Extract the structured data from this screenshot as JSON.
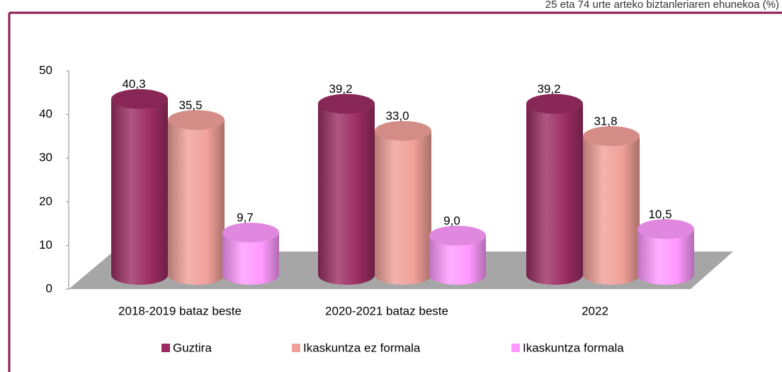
{
  "chart_data": {
    "type": "bar3d",
    "title": "25 eta 74 urte arteko biztanleriaren ehunekoa (%)",
    "categories": [
      "2018-2019 bataz beste",
      "2020-2021 bataz beste",
      "2022"
    ],
    "series": [
      {
        "name": "Guztira",
        "color": "#9b2c62",
        "values": [
          40.3,
          39.2,
          39.2
        ],
        "value_labels": [
          "40,3",
          "39,2",
          "39,2"
        ]
      },
      {
        "name": "Ikaskuntza ez formala",
        "color": "#f0a098",
        "values": [
          35.5,
          33.0,
          31.8
        ],
        "value_labels": [
          "35,5",
          "33,0",
          "31,8"
        ]
      },
      {
        "name": "Ikaskuntza formala",
        "color": "#ff99ff",
        "values": [
          9.7,
          9.0,
          10.5
        ],
        "value_labels": [
          "9,7",
          "9,0",
          "10,5"
        ]
      }
    ],
    "ylim": [
      0,
      50
    ],
    "yticks": [
      0,
      10,
      20,
      30,
      40,
      50
    ]
  }
}
